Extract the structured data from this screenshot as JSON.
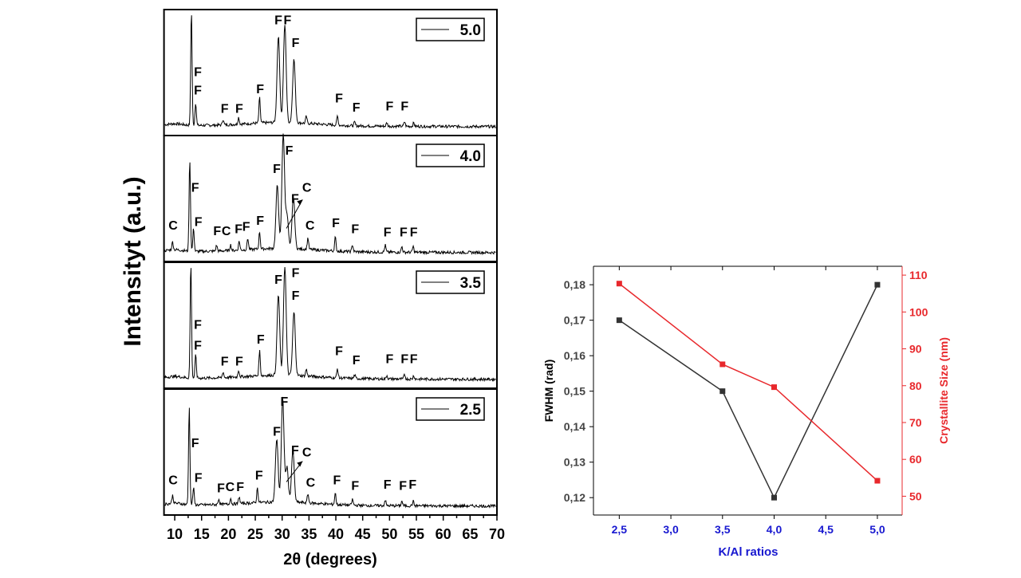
{
  "chart_data": [
    {
      "type": "line",
      "title": "",
      "xlabel": "2θ (degrees)",
      "ylabel": "Intensityt (a.u.)",
      "xlim": [
        8,
        70
      ],
      "xticks": [
        "10",
        "15",
        "20",
        "25",
        "30",
        "35",
        "40",
        "45",
        "50",
        "55",
        "60",
        "65",
        "70"
      ],
      "panels": [
        {
          "legend": "5.0",
          "peaks": [
            [
              13.1,
              1.0
            ],
            [
              13.9,
              0.2
            ],
            [
              19.0,
              0.05
            ],
            [
              21.9,
              0.06
            ],
            [
              25.8,
              0.22
            ],
            [
              29.3,
              0.75
            ],
            [
              30.5,
              0.85
            ],
            [
              32.2,
              0.55
            ],
            [
              34.5,
              0.06
            ],
            [
              40.3,
              0.08
            ],
            [
              43.5,
              0.03
            ],
            [
              49.5,
              0.03
            ],
            [
              52.8,
              0.04
            ],
            [
              54.5,
              0.03
            ]
          ],
          "labels": [
            [
              "F",
              14.3,
              0.43
            ],
            [
              "F",
              14.3,
              0.27
            ],
            [
              "F",
              19.3,
              0.11
            ],
            [
              "F",
              22.0,
              0.11
            ],
            [
              "F",
              25.9,
              0.28
            ],
            [
              "F",
              29.3,
              0.88
            ],
            [
              "F",
              31.0,
              0.88
            ],
            [
              "F",
              32.5,
              0.68
            ],
            [
              "F",
              40.6,
              0.2
            ],
            [
              "F",
              43.8,
              0.12
            ],
            [
              "F",
              50.0,
              0.13
            ],
            [
              "F",
              52.8,
              0.13
            ]
          ]
        },
        {
          "legend": "4.0",
          "peaks": [
            [
              9.6,
              0.07
            ],
            [
              12.8,
              0.8
            ],
            [
              13.5,
              0.2
            ],
            [
              17.8,
              0.05
            ],
            [
              20.4,
              0.05
            ],
            [
              22.0,
              0.08
            ],
            [
              23.6,
              0.1
            ],
            [
              25.8,
              0.15
            ],
            [
              29.1,
              0.55
            ],
            [
              30.2,
              1.0
            ],
            [
              30.9,
              0.3
            ],
            [
              32.1,
              0.45
            ],
            [
              34.8,
              0.1
            ],
            [
              39.9,
              0.12
            ],
            [
              43.1,
              0.06
            ],
            [
              49.2,
              0.06
            ],
            [
              52.3,
              0.05
            ],
            [
              54.4,
              0.05
            ]
          ],
          "labels": [
            [
              "C",
              9.7,
              0.19
            ],
            [
              "F",
              13.8,
              0.52
            ],
            [
              "F",
              14.4,
              0.22
            ],
            [
              "F",
              17.9,
              0.14
            ],
            [
              "C",
              19.6,
              0.14
            ],
            [
              "F",
              21.9,
              0.16
            ],
            [
              "F",
              23.3,
              0.18
            ],
            [
              "F",
              25.9,
              0.23
            ],
            [
              "F",
              29.0,
              0.68
            ],
            [
              "F",
              31.3,
              0.84
            ],
            [
              "F",
              32.4,
              0.42
            ],
            [
              "C",
              34.6,
              0.52
            ],
            [
              "C",
              35.2,
              0.19
            ],
            [
              "F",
              40.0,
              0.21
            ],
            [
              "F",
              43.6,
              0.16
            ],
            [
              "F",
              49.6,
              0.13
            ],
            [
              "F",
              52.6,
              0.13
            ],
            [
              "F",
              54.5,
              0.13
            ]
          ],
          "arrow": [
            30.8,
            0.2,
            33.8,
            0.45
          ]
        },
        {
          "legend": "3.5",
          "peaks": [
            [
              13.0,
              1.0
            ],
            [
              13.9,
              0.2
            ],
            [
              19.0,
              0.05
            ],
            [
              21.9,
              0.06
            ],
            [
              25.8,
              0.22
            ],
            [
              29.3,
              0.7
            ],
            [
              30.5,
              0.95
            ],
            [
              32.2,
              0.55
            ],
            [
              34.5,
              0.06
            ],
            [
              40.3,
              0.08
            ],
            [
              43.5,
              0.03
            ],
            [
              49.5,
              0.03
            ],
            [
              52.8,
              0.04
            ],
            [
              54.5,
              0.03
            ]
          ],
          "labels": [
            [
              "F",
              14.3,
              0.43
            ],
            [
              "F",
              14.3,
              0.25
            ],
            [
              "F",
              19.3,
              0.11
            ],
            [
              "F",
              22.0,
              0.11
            ],
            [
              "F",
              26.0,
              0.3
            ],
            [
              "F",
              29.3,
              0.82
            ],
            [
              "F",
              32.5,
              0.88
            ],
            [
              "F",
              32.5,
              0.68
            ],
            [
              "F",
              40.6,
              0.2
            ],
            [
              "F",
              43.8,
              0.12
            ],
            [
              "F",
              50.0,
              0.13
            ],
            [
              "F",
              52.8,
              0.13
            ],
            [
              "F",
              54.5,
              0.13
            ]
          ]
        },
        {
          "legend": "2.5",
          "peaks": [
            [
              9.6,
              0.07
            ],
            [
              12.7,
              0.85
            ],
            [
              13.5,
              0.15
            ],
            [
              18.2,
              0.05
            ],
            [
              20.4,
              0.05
            ],
            [
              22.0,
              0.06
            ],
            [
              25.4,
              0.13
            ],
            [
              29.0,
              0.55
            ],
            [
              30.1,
              0.9
            ],
            [
              30.9,
              0.3
            ],
            [
              32.0,
              0.45
            ],
            [
              34.8,
              0.08
            ],
            [
              39.9,
              0.1
            ],
            [
              43.1,
              0.05
            ],
            [
              49.2,
              0.05
            ],
            [
              52.3,
              0.04
            ],
            [
              54.4,
              0.04
            ]
          ],
          "labels": [
            [
              "C",
              9.7,
              0.18
            ],
            [
              "F",
              13.8,
              0.5
            ],
            [
              "F",
              14.4,
              0.2
            ],
            [
              "F",
              18.6,
              0.11
            ],
            [
              "C",
              20.3,
              0.12
            ],
            [
              "F",
              22.2,
              0.12
            ],
            [
              "F",
              25.7,
              0.22
            ],
            [
              "F",
              29.0,
              0.6
            ],
            [
              "F",
              30.4,
              0.86
            ],
            [
              "F",
              32.4,
              0.44
            ],
            [
              "C",
              34.6,
              0.42
            ],
            [
              "C",
              35.3,
              0.16
            ],
            [
              "F",
              40.2,
              0.18
            ],
            [
              "F",
              43.6,
              0.13
            ],
            [
              "F",
              49.6,
              0.14
            ],
            [
              "F",
              52.5,
              0.13
            ],
            [
              "F",
              54.3,
              0.14
            ]
          ],
          "arrow": [
            30.8,
            0.2,
            33.8,
            0.38
          ]
        }
      ]
    },
    {
      "type": "line",
      "xlabel": "K/Al ratios",
      "ylabel": "FWHM (rad)",
      "ylabel_right": "Crystallite Size (nm)",
      "x": [
        2.5,
        3.5,
        4.0,
        5.0
      ],
      "xlim": [
        2.25,
        5.24
      ],
      "xticks": [
        "2,5",
        "3,0",
        "3,5",
        "4,0",
        "4,5",
        "5,0"
      ],
      "xtick_values": [
        2.5,
        3.0,
        3.5,
        4.0,
        4.5,
        5.0
      ],
      "ylim": [
        0.1151,
        0.1852
      ],
      "yticks": [
        "0,12",
        "0,13",
        "0,14",
        "0,15",
        "0,16",
        "0,17",
        "0,18"
      ],
      "ytick_values": [
        0.12,
        0.13,
        0.14,
        0.15,
        0.16,
        0.17,
        0.18
      ],
      "ylim_right": [
        44.9,
        112.4
      ],
      "yticks_right": [
        "50",
        "60",
        "70",
        "80",
        "90",
        "100",
        "110"
      ],
      "ytick_values_right": [
        50,
        60,
        70,
        80,
        90,
        100,
        110
      ],
      "series": [
        {
          "name": "FWHM",
          "axis": "left",
          "color": "#333333",
          "values": [
            0.17,
            0.15,
            0.12,
            0.18
          ]
        },
        {
          "name": "Crystallite Size",
          "axis": "right",
          "color": "#e8282c",
          "values": [
            107.7,
            85.8,
            79.6,
            54.2
          ]
        }
      ],
      "colors": {
        "xaxis_text": "#1818d0",
        "right_axis": "#e8282c"
      }
    }
  ]
}
